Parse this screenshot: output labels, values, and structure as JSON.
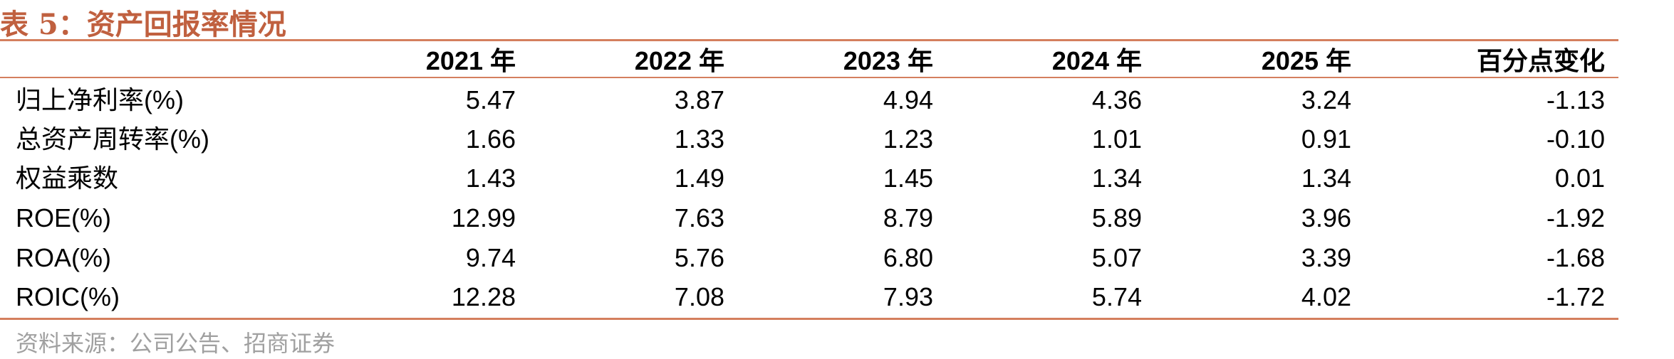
{
  "title": "表 5：资产回报率情况",
  "table": {
    "header": [
      "",
      "2021 年",
      "2022 年",
      "2023 年",
      "2024 年",
      "2025 年",
      "百分点变化"
    ],
    "rows": [
      [
        "归上净利率(%)",
        "5.47",
        "3.87",
        "4.94",
        "4.36",
        "3.24",
        "-1.13"
      ],
      [
        "总资产周转率(%)",
        "1.66",
        "1.33",
        "1.23",
        "1.01",
        "0.91",
        "-0.10"
      ],
      [
        "权益乘数",
        "1.43",
        "1.49",
        "1.45",
        "1.34",
        "1.34",
        "0.01"
      ],
      [
        "ROE(%)",
        "12.99",
        "7.63",
        "8.79",
        "5.89",
        "3.96",
        "-1.92"
      ],
      [
        "ROA(%)",
        "9.74",
        "5.76",
        "6.80",
        "5.07",
        "3.39",
        "-1.68"
      ],
      [
        "ROIC(%)",
        "12.28",
        "7.08",
        "7.93",
        "5.74",
        "4.02",
        "-1.72"
      ]
    ]
  },
  "source": "资料来源：公司公告、招商证券"
}
